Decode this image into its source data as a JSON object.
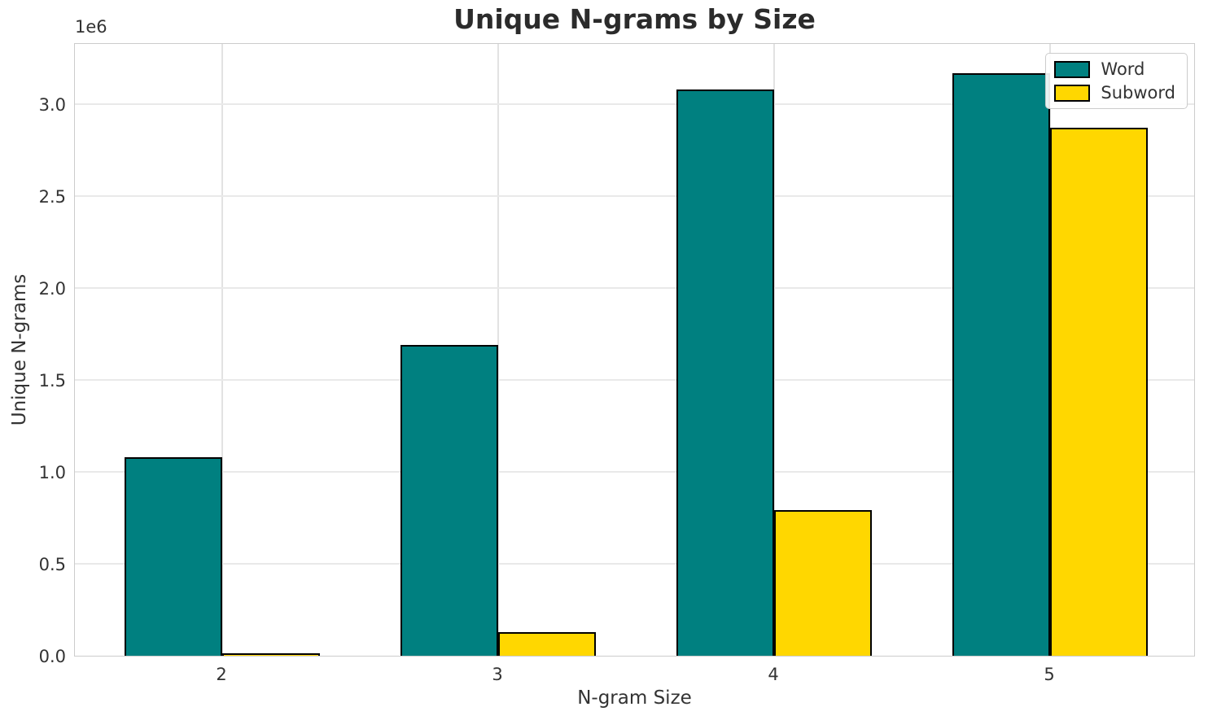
{
  "chart_data": {
    "type": "bar",
    "title": "Unique N-grams by Size",
    "xlabel": "N-gram Size",
    "ylabel": "Unique N-grams",
    "offset_text": "1e6",
    "categories": [
      "2",
      "3",
      "4",
      "5"
    ],
    "series": [
      {
        "name": "Word",
        "color": "#008080",
        "values": [
          1080000,
          1690000,
          3080000,
          3170000
        ]
      },
      {
        "name": "Subword",
        "color": "#FFD700",
        "values": [
          12000,
          130000,
          790000,
          2870000
        ]
      }
    ],
    "ylim": [
      0,
      3336000
    ],
    "yticks": [
      0,
      500000,
      1000000,
      1500000,
      2000000,
      2500000,
      3000000
    ],
    "ytick_labels": [
      "0.0",
      "0.5",
      "1.0",
      "1.5",
      "2.0",
      "2.5",
      "3.0"
    ],
    "grid": true,
    "legend_position": "upper right",
    "bar_edge_color": "#000000",
    "background_color": "#ffffff"
  }
}
